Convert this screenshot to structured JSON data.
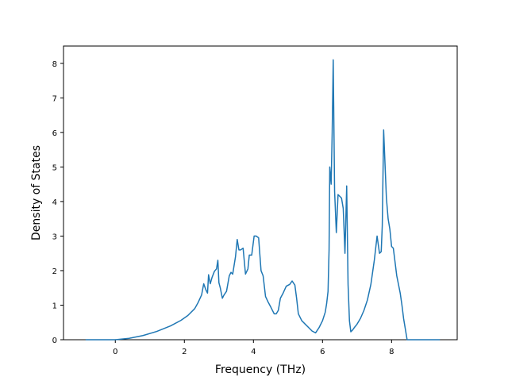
{
  "chart_data": {
    "type": "line",
    "title": "",
    "xlabel": "Frequency (THz)",
    "ylabel": "Density of States",
    "xlim": [
      -1.5,
      9.9
    ],
    "ylim": [
      0,
      8.5
    ],
    "xticks": [
      0,
      2,
      4,
      6,
      8
    ],
    "xtick_labels": [
      "0",
      "2",
      "4",
      "6",
      "8"
    ],
    "yticks": [
      0,
      1,
      2,
      3,
      4,
      5,
      6,
      7,
      8
    ],
    "ytick_labels": [
      "0",
      "1",
      "2",
      "3",
      "4",
      "5",
      "6",
      "7",
      "8"
    ],
    "grid": false,
    "legend": false,
    "series": [
      {
        "color": "#1f77b4",
        "x": [
          -0.86,
          0.0,
          0.4,
          0.8,
          1.2,
          1.6,
          1.9,
          2.1,
          2.3,
          2.4,
          2.5,
          2.56,
          2.62,
          2.67,
          2.7,
          2.75,
          2.8,
          2.87,
          2.93,
          2.97,
          3.0,
          3.04,
          3.1,
          3.15,
          3.22,
          3.3,
          3.35,
          3.4,
          3.48,
          3.53,
          3.58,
          3.63,
          3.7,
          3.77,
          3.84,
          3.88,
          3.95,
          4.02,
          4.08,
          4.15,
          4.22,
          4.28,
          4.35,
          4.42,
          4.5,
          4.6,
          4.66,
          4.72,
          4.78,
          4.86,
          4.95,
          5.05,
          5.12,
          5.2,
          5.25,
          5.3,
          5.4,
          5.5,
          5.6,
          5.7,
          5.8,
          5.9,
          6.0,
          6.08,
          6.12,
          6.16,
          6.19,
          6.21,
          6.25,
          6.28,
          6.31,
          6.35,
          6.4,
          6.45,
          6.55,
          6.6,
          6.65,
          6.7,
          6.74,
          6.78,
          6.82,
          6.87,
          6.92,
          7.0,
          7.1,
          7.2,
          7.3,
          7.4,
          7.5,
          7.58,
          7.65,
          7.7,
          7.73,
          7.77,
          7.85,
          7.9,
          7.95,
          8.0,
          8.05,
          8.15,
          8.25,
          8.3,
          8.35,
          8.45,
          8.53,
          8.6,
          9.4
        ],
        "y": [
          0.0,
          0.0,
          0.04,
          0.12,
          0.24,
          0.4,
          0.56,
          0.7,
          0.9,
          1.08,
          1.3,
          1.62,
          1.45,
          1.35,
          1.88,
          1.62,
          1.8,
          1.98,
          2.05,
          2.3,
          1.65,
          1.5,
          1.2,
          1.3,
          1.4,
          1.85,
          1.95,
          1.9,
          2.4,
          2.9,
          2.6,
          2.6,
          2.65,
          1.9,
          2.05,
          2.45,
          2.45,
          3.0,
          3.0,
          2.95,
          2.0,
          1.85,
          1.25,
          1.1,
          0.95,
          0.75,
          0.75,
          0.85,
          1.2,
          1.35,
          1.55,
          1.6,
          1.7,
          1.58,
          1.2,
          0.75,
          0.55,
          0.45,
          0.35,
          0.25,
          0.2,
          0.35,
          0.55,
          0.8,
          1.05,
          1.4,
          2.6,
          5.0,
          4.5,
          6.0,
          8.1,
          4.3,
          3.1,
          4.2,
          4.1,
          3.8,
          2.5,
          4.45,
          1.6,
          0.55,
          0.23,
          0.28,
          0.35,
          0.45,
          0.62,
          0.85,
          1.15,
          1.6,
          2.3,
          3.0,
          2.5,
          2.55,
          3.3,
          6.07,
          4.1,
          3.5,
          3.2,
          2.7,
          2.65,
          1.85,
          1.35,
          1.0,
          0.6,
          0.0,
          0.0,
          0.0,
          0.0
        ]
      }
    ]
  }
}
